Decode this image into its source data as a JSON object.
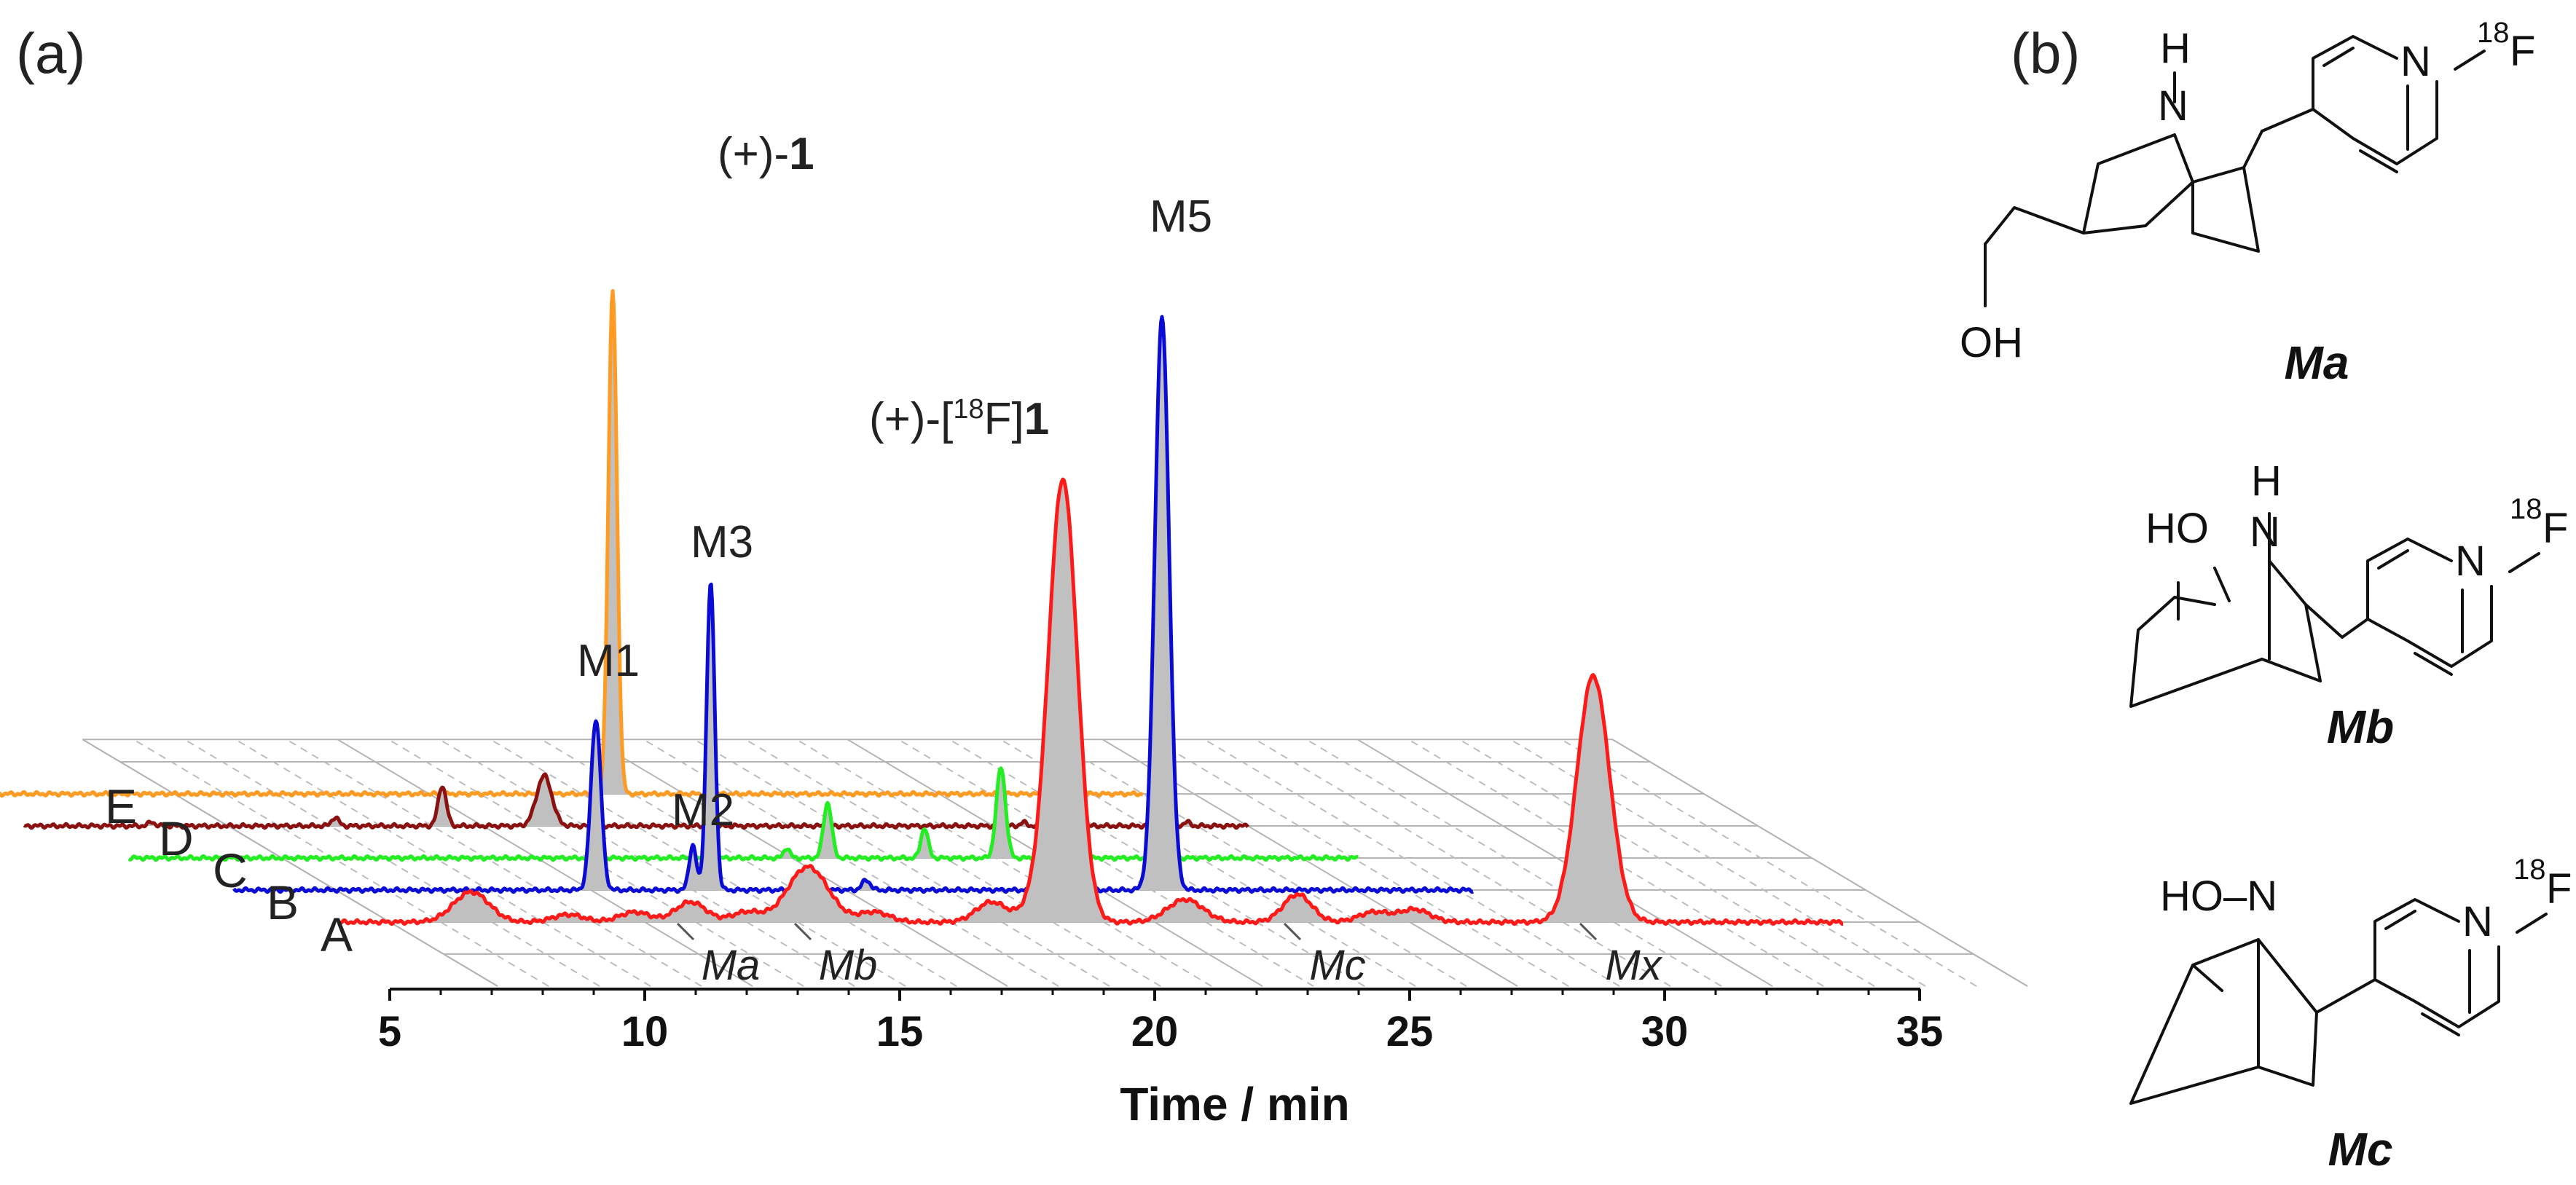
{
  "panel_a_label": "(a)",
  "panel_b_label": "(b)",
  "chart_data": {
    "type": "line",
    "title": "",
    "xlabel": "Time / min",
    "ylabel": "",
    "xlim": [
      5,
      35
    ],
    "xticks": [
      5,
      10,
      15,
      20,
      25,
      30,
      35
    ],
    "grid": true,
    "layout": "3d-waterfall",
    "series": [
      {
        "name": "A",
        "color": "#ff1a1a",
        "t_start": 4.0,
        "t_end": 33.5,
        "peaks": [
          {
            "t": 6.6,
            "h": 0.06,
            "w": 0.35
          },
          {
            "t": 8.5,
            "h": 0.015,
            "w": 0.3
          },
          {
            "t": 9.8,
            "h": 0.02,
            "w": 0.3
          },
          {
            "t": 10.9,
            "h": 0.04,
            "w": 0.3
          },
          {
            "t": 12.0,
            "h": 0.02,
            "w": 0.3
          },
          {
            "t": 13.2,
            "h": 0.11,
            "w": 0.4
          },
          {
            "t": 14.5,
            "h": 0.02,
            "w": 0.3
          },
          {
            "t": 16.8,
            "h": 0.04,
            "w": 0.3
          },
          {
            "t": 17.6,
            "h": 0.025,
            "w": 0.25
          },
          {
            "t": 18.2,
            "h": 0.88,
            "w": 0.28
          },
          {
            "t": 20.6,
            "h": 0.045,
            "w": 0.35
          },
          {
            "t": 22.8,
            "h": 0.055,
            "w": 0.28
          },
          {
            "t": 24.3,
            "h": 0.02,
            "w": 0.3
          },
          {
            "t": 25.1,
            "h": 0.025,
            "w": 0.3
          },
          {
            "t": 28.6,
            "h": 0.49,
            "w": 0.32
          }
        ]
      },
      {
        "name": "B",
        "color": "#0b0bd6",
        "t_start": 3.0,
        "t_end": 27.3,
        "peaks": [
          {
            "t": 10.1,
            "h": 0.34,
            "w": 0.1
          },
          {
            "t": 12.0,
            "h": 0.09,
            "w": 0.07
          },
          {
            "t": 12.35,
            "h": 0.61,
            "w": 0.08
          },
          {
            "t": 15.4,
            "h": 0.02,
            "w": 0.08
          },
          {
            "t": 21.2,
            "h": 1.14,
            "w": 0.14
          }
        ]
      },
      {
        "name": "C",
        "color": "#22ee22",
        "t_start": 2.0,
        "t_end": 26.1,
        "peaks": [
          {
            "t": 14.9,
            "h": 0.02,
            "w": 0.06
          },
          {
            "t": 15.7,
            "h": 0.11,
            "w": 0.08
          },
          {
            "t": 17.6,
            "h": 0.06,
            "w": 0.07
          },
          {
            "t": 19.1,
            "h": 0.18,
            "w": 0.09
          },
          {
            "t": 20.2,
            "h": 0.03,
            "w": 0.07
          }
        ]
      },
      {
        "name": "D",
        "color": "#8b1010",
        "t_start": 1.0,
        "t_end": 25.0,
        "peaks": [
          {
            "t": 3.5,
            "h": 0.008,
            "w": 0.06
          },
          {
            "t": 7.1,
            "h": 0.017,
            "w": 0.07
          },
          {
            "t": 9.2,
            "h": 0.08,
            "w": 0.08
          },
          {
            "t": 11.2,
            "h": 0.1,
            "w": 0.15
          },
          {
            "t": 20.6,
            "h": 0.007,
            "w": 0.06
          },
          {
            "t": 23.8,
            "h": 0.008,
            "w": 0.06
          }
        ]
      },
      {
        "name": "E",
        "color": "#ff9a22",
        "t_start": 0.0,
        "t_end": 24.0,
        "peaks": [
          {
            "t": 13.6,
            "h": 1.0,
            "w": 0.085
          }
        ]
      }
    ],
    "peak_annotations": [
      {
        "text": "(+)-",
        "bold": "1"
      },
      {
        "text_before": "(+)-[",
        "sup": "18",
        "text_after": "F]",
        "bold": "1"
      },
      {
        "text": "M1"
      },
      {
        "text": "M2"
      },
      {
        "text": "M3"
      },
      {
        "text": "M5"
      }
    ],
    "metabolite_markers": [
      "Ma",
      "Mb",
      "Mc",
      "Mx"
    ]
  },
  "structures": [
    {
      "name": "Ma",
      "atoms": {
        "nh_h": "H",
        "nh_n": "N",
        "py_n": "N",
        "iso": "18",
        "f": "F",
        "oh": "OH"
      }
    },
    {
      "name": "Mb",
      "atoms": {
        "ho": "HO",
        "nh_h": "H",
        "nh_n": "N",
        "py_n": "N",
        "iso": "18",
        "f": "F"
      }
    },
    {
      "name": "Mc",
      "atoms": {
        "hon": "HO–N",
        "py_n": "N",
        "iso": "18",
        "f": "F"
      }
    }
  ],
  "colors": {
    "fill": "#c0c0c0",
    "grid": "#bdbdbd"
  }
}
